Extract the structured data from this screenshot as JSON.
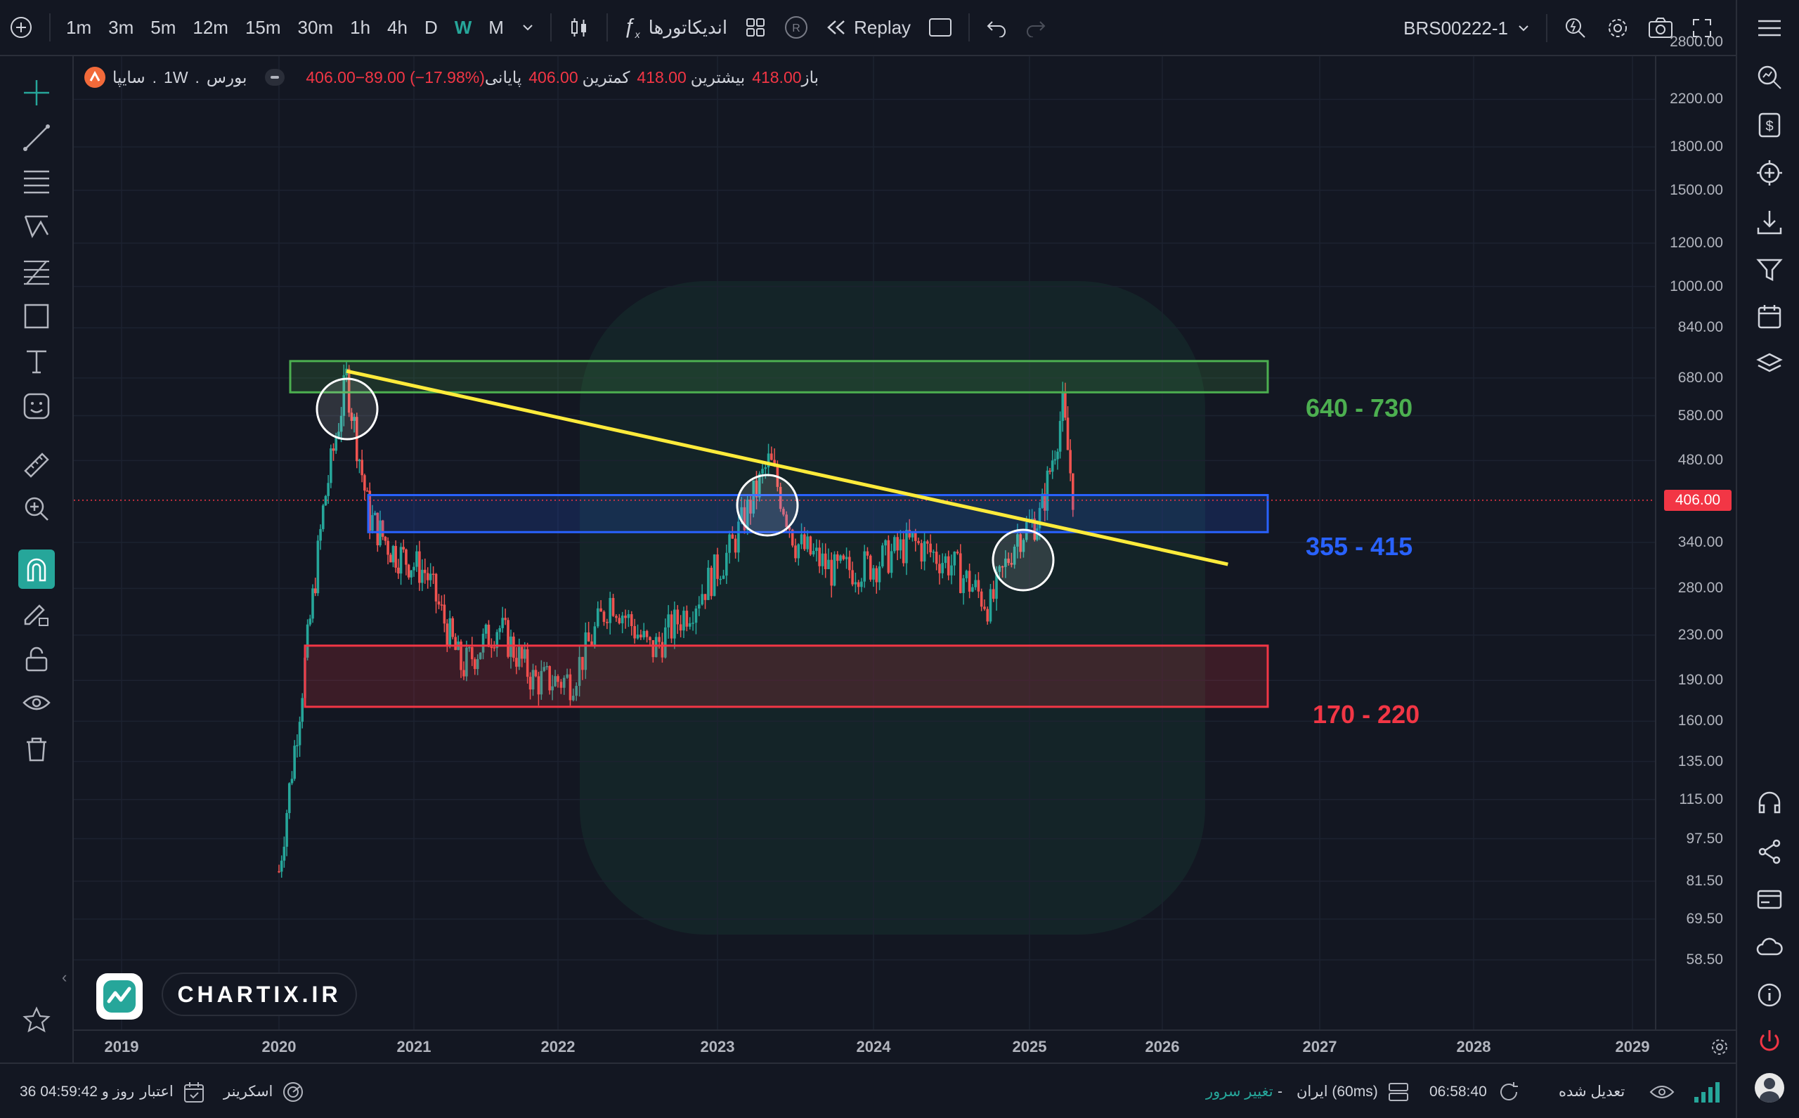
{
  "toolbar": {
    "intervals": [
      "1m",
      "3m",
      "5m",
      "12m",
      "15m",
      "30m",
      "1h",
      "4h",
      "D",
      "W",
      "M"
    ],
    "active_interval": "W",
    "indicators_label": "اندیکاتورها",
    "replay_label": "Replay",
    "symbol_code": "BRS00222-1"
  },
  "legend": {
    "symbol_name": "سایپا",
    "interval": "1W",
    "exchange": "بورس",
    "open_label": "باز",
    "open_value": "418.00",
    "high_label": "بیشترین",
    "high_value": "418.00",
    "low_label": "کمترین",
    "low_value": "406.00",
    "close_label": "پایانی",
    "close_change": "406.00−89.00 (−17.98%)"
  },
  "price_scale": {
    "ticks": [
      "2800.00",
      "2200.00",
      "1800.00",
      "1500.00",
      "1200.00",
      "1000.00",
      "840.00",
      "680.00",
      "580.00",
      "480.00",
      "340.00",
      "280.00",
      "230.00",
      "190.00",
      "160.00",
      "135.00",
      "115.00",
      "97.50",
      "81.50",
      "69.50",
      "58.50"
    ],
    "current_price": "406.00"
  },
  "time_scale": {
    "years": [
      "2019",
      "2020",
      "2021",
      "2022",
      "2023",
      "2024",
      "2025",
      "2026",
      "2027",
      "2028",
      "2029"
    ]
  },
  "zones": {
    "resistance": {
      "label": "640 - 730",
      "low": 640,
      "high": 730,
      "color": "#4caf50"
    },
    "mid": {
      "label": "355 - 415",
      "low": 355,
      "high": 415,
      "color": "#2962ff"
    },
    "support": {
      "label": "170 - 220",
      "low": 170,
      "high": 220,
      "color": "#f23645"
    }
  },
  "trendline": {
    "color": "#ffeb3b",
    "from": {
      "date": "2020-07",
      "price": 700
    },
    "to": {
      "date": "2026-06",
      "price": 310
    }
  },
  "watermark": {
    "text": "CHARTIX.IR"
  },
  "status": {
    "subscription_label": "اعتبار",
    "subscription_value": "36 روز و 04:59:42",
    "screener_label": "اسکرینر",
    "change_server": "تغییر سرور",
    "server": "ایران (60ms)",
    "time": "06:58:40",
    "adjusted": "تعدیل شده"
  },
  "colors": {
    "up": "#26a69a",
    "down": "#ef5350",
    "background": "#131722",
    "accent": "#26a69a"
  },
  "chart_data": {
    "type": "candlestick",
    "interval": "1W",
    "y_scale": "log",
    "ylim": [
      52,
      3000
    ],
    "xlim": [
      "2018-11",
      "2029-01"
    ],
    "last_close": 406.0,
    "approx_weekly_closes": [
      {
        "date": "2020-01",
        "price": 85
      },
      {
        "date": "2020-03",
        "price": 180
      },
      {
        "date": "2020-05",
        "price": 400
      },
      {
        "date": "2020-07",
        "price": 680
      },
      {
        "date": "2020-09",
        "price": 380
      },
      {
        "date": "2020-11",
        "price": 330
      },
      {
        "date": "2021-02",
        "price": 300
      },
      {
        "date": "2021-05",
        "price": 200
      },
      {
        "date": "2021-08",
        "price": 240
      },
      {
        "date": "2021-11",
        "price": 190
      },
      {
        "date": "2022-02",
        "price": 190
      },
      {
        "date": "2022-05",
        "price": 270
      },
      {
        "date": "2022-08",
        "price": 215
      },
      {
        "date": "2022-11",
        "price": 260
      },
      {
        "date": "2023-02",
        "price": 330
      },
      {
        "date": "2023-05",
        "price": 480
      },
      {
        "date": "2023-07",
        "price": 340
      },
      {
        "date": "2023-10",
        "price": 300
      },
      {
        "date": "2024-01",
        "price": 310
      },
      {
        "date": "2024-04",
        "price": 340
      },
      {
        "date": "2024-07",
        "price": 310
      },
      {
        "date": "2024-10",
        "price": 260
      },
      {
        "date": "2024-12",
        "price": 350
      },
      {
        "date": "2025-02",
        "price": 380
      },
      {
        "date": "2025-04",
        "price": 600
      },
      {
        "date": "2025-05",
        "price": 406
      }
    ]
  }
}
